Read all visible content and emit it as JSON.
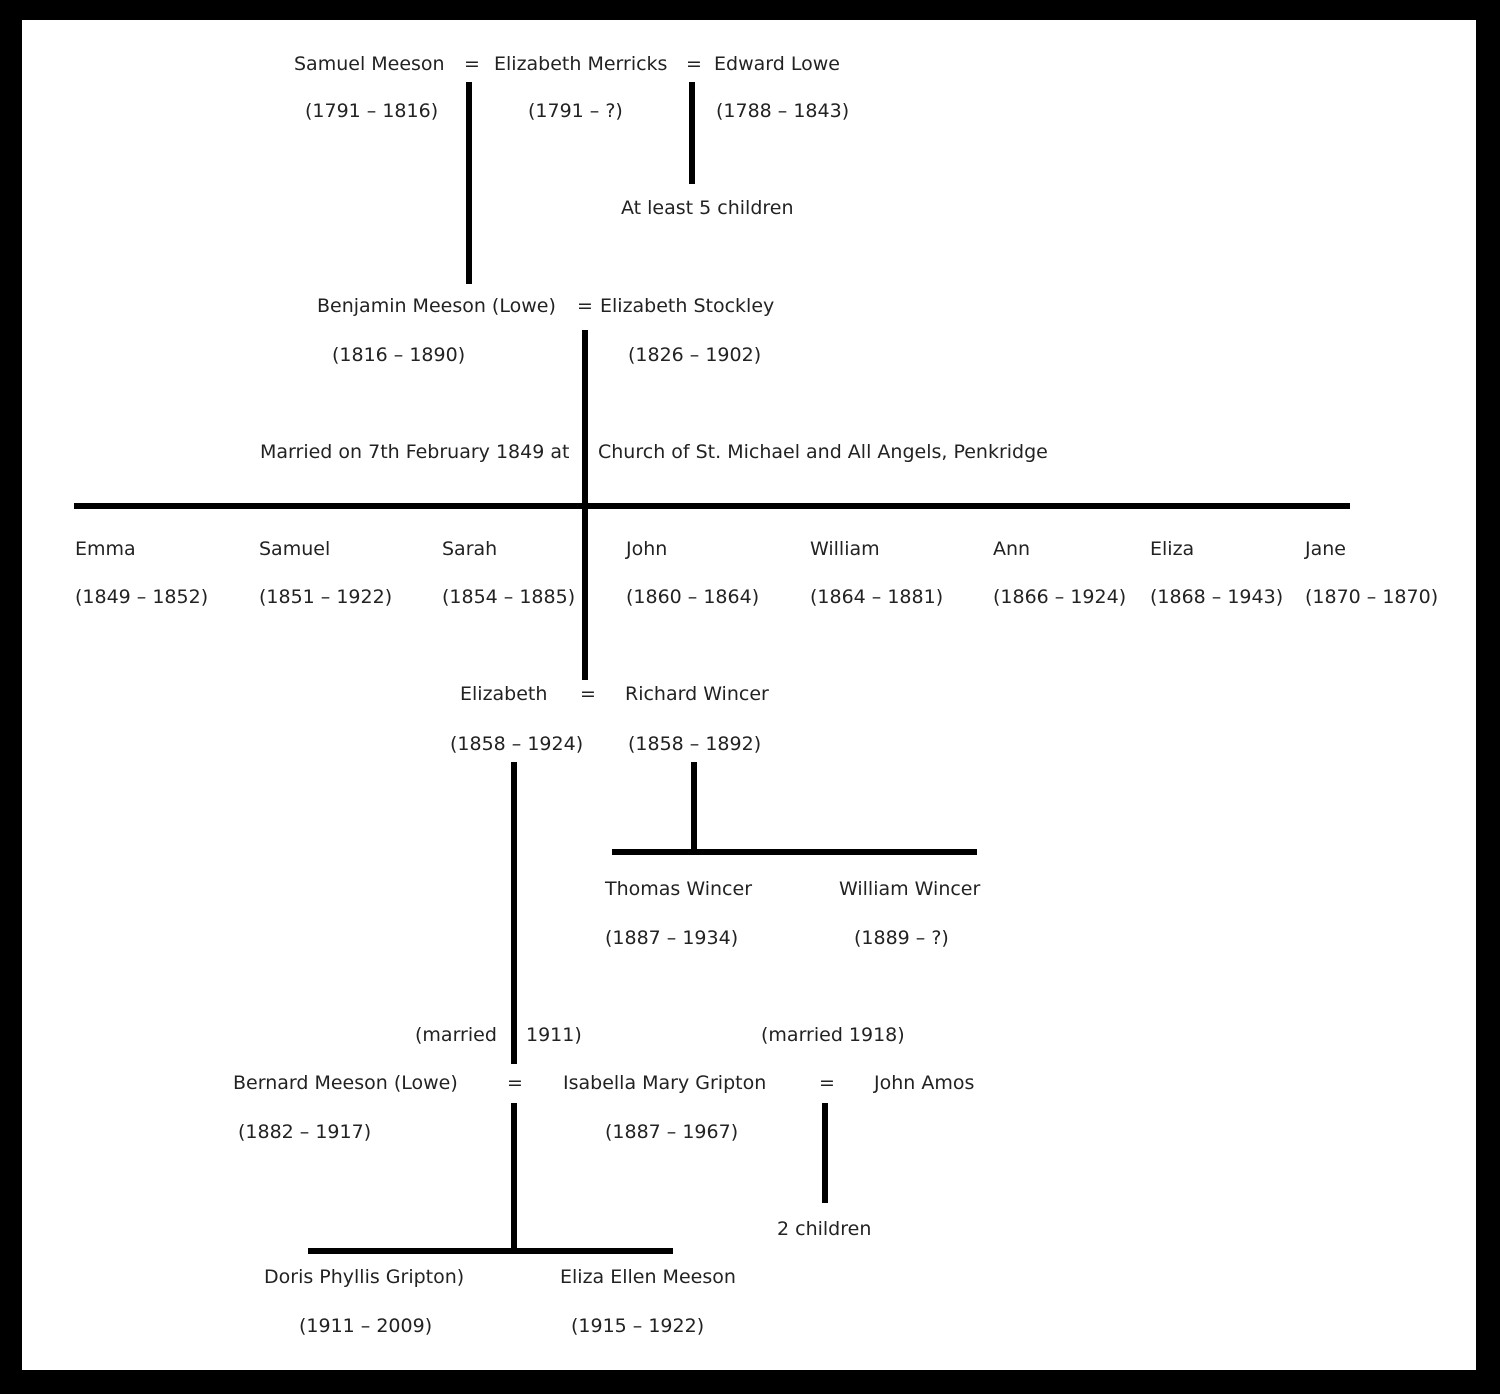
{
  "gen1": {
    "samuel_meeson": {
      "name": "Samuel Meeson",
      "dates": "(1791 – 1816)"
    },
    "eq1": "=",
    "elizabeth_merricks": {
      "name": "Elizabeth Merricks",
      "dates": "(1791 – ?)"
    },
    "eq2": "=",
    "edward_lowe": {
      "name": "Edward Lowe",
      "dates": "(1788 – 1843)"
    },
    "lowe_children_note": "At least 5 children"
  },
  "gen2": {
    "benjamin": {
      "name": "Benjamin Meeson (Lowe)",
      "dates": "(1816 – 1890)"
    },
    "eq": "=",
    "elizabeth_stockley": {
      "name": "Elizabeth Stockley",
      "dates": "(1826 – 1902)"
    },
    "marriage_left": "Married on 7th February 1849 at",
    "marriage_right": "Church of St. Michael and All Angels, Penkridge"
  },
  "children": [
    {
      "name": "Emma",
      "dates": "(1849 – 1852)"
    },
    {
      "name": "Samuel",
      "dates": "(1851 – 1922)"
    },
    {
      "name": "Sarah",
      "dates": "(1854 – 1885)"
    },
    {
      "name": "John",
      "dates": "(1860 – 1864)"
    },
    {
      "name": "William",
      "dates": "(1864 – 1881)"
    },
    {
      "name": "Ann",
      "dates": "(1866 – 1924)"
    },
    {
      "name": "Eliza",
      "dates": "(1868 – 1943)"
    },
    {
      "name": "Jane",
      "dates": "(1870 – 1870)"
    }
  ],
  "gen3": {
    "elizabeth": {
      "name": "Elizabeth",
      "dates": "(1858 – 1924)"
    },
    "eq": "=",
    "richard_wincer": {
      "name": "Richard Wincer",
      "dates": "(1858 – 1892)"
    },
    "thomas_wincer": {
      "name": "Thomas Wincer",
      "dates": "(1887 – 1934)"
    },
    "william_wincer": {
      "name": "William Wincer",
      "dates": "(1889 – ?)"
    }
  },
  "gen4": {
    "married_1911_left": "(married",
    "married_1911_right": "1911)",
    "married_1918": "(married 1918)",
    "bernard": {
      "name": "Bernard Meeson (Lowe)",
      "dates": "(1882 – 1917)"
    },
    "eq1": "=",
    "isabella": {
      "name": "Isabella Mary Gripton",
      "dates": "(1887 – 1967)"
    },
    "eq2": "=",
    "john_amos": {
      "name": "John Amos"
    },
    "amos_children_note": "2 children"
  },
  "gen5": {
    "doris": {
      "name": "Doris Phyllis Gripton)",
      "dates": "(1911 – 2009)"
    },
    "eliza_ellen": {
      "name": "Eliza Ellen Meeson",
      "dates": "(1915 – 1922)"
    }
  }
}
